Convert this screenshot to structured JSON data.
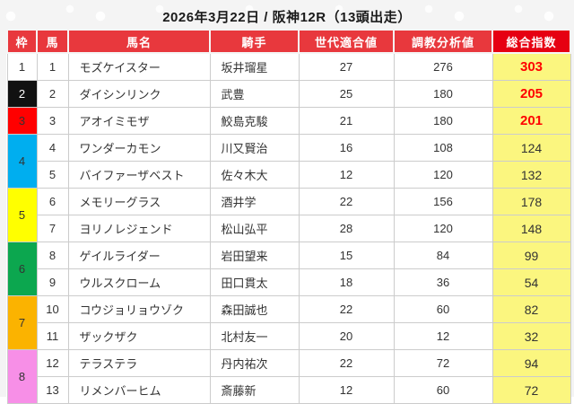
{
  "title": "2026年3月22日 / 阪神12R（13頭出走）",
  "colors": {
    "page_bg": "#f4f4f4",
    "header_bg": "#e8383d",
    "total_header_bg": "#e60012",
    "total_col_bg": "#fbf67f",
    "hot_value_color": "#ff0000"
  },
  "table": {
    "headers": [
      "枠",
      "馬",
      "馬名",
      "騎手",
      "世代適合値",
      "調教分析値",
      "総合指数"
    ],
    "frame_colors": {
      "1": {
        "bg": "#ffffff",
        "fg": "#333333"
      },
      "2": {
        "bg": "#111111",
        "fg": "#ffffff"
      },
      "3": {
        "bg": "#ff0000",
        "fg": "#333333"
      },
      "4": {
        "bg": "#00aeef",
        "fg": "#333333"
      },
      "5": {
        "bg": "#ffff00",
        "fg": "#333333"
      },
      "6": {
        "bg": "#0ca74f",
        "fg": "#333333"
      },
      "7": {
        "bg": "#fbb300",
        "fg": "#333333"
      },
      "8": {
        "bg": "#f78fe7",
        "fg": "#333333"
      }
    },
    "rows": [
      {
        "frame": 1,
        "num": 1,
        "name": "モズケイスター",
        "jockey": "坂井瑠星",
        "gen": 27,
        "train": 276,
        "total": 303,
        "hot": true
      },
      {
        "frame": 2,
        "num": 2,
        "name": "ダイシンリンク",
        "jockey": "武豊",
        "gen": 25,
        "train": 180,
        "total": 205,
        "hot": true
      },
      {
        "frame": 3,
        "num": 3,
        "name": "アオイミモザ",
        "jockey": "鮫島克駿",
        "gen": 21,
        "train": 180,
        "total": 201,
        "hot": true
      },
      {
        "frame": 4,
        "num": 4,
        "name": "ワンダーカモン",
        "jockey": "川又賢治",
        "gen": 16,
        "train": 108,
        "total": 124,
        "hot": false
      },
      {
        "frame": 4,
        "num": 5,
        "name": "バイファーザベスト",
        "jockey": "佐々木大",
        "gen": 12,
        "train": 120,
        "total": 132,
        "hot": false
      },
      {
        "frame": 5,
        "num": 6,
        "name": "メモリーグラス",
        "jockey": "酒井学",
        "gen": 22,
        "train": 156,
        "total": 178,
        "hot": false
      },
      {
        "frame": 5,
        "num": 7,
        "name": "ヨリノレジェンド",
        "jockey": "松山弘平",
        "gen": 28,
        "train": 120,
        "total": 148,
        "hot": false
      },
      {
        "frame": 6,
        "num": 8,
        "name": "ゲイルライダー",
        "jockey": "岩田望来",
        "gen": 15,
        "train": 84,
        "total": 99,
        "hot": false
      },
      {
        "frame": 6,
        "num": 9,
        "name": "ウルスクローム",
        "jockey": "田口貫太",
        "gen": 18,
        "train": 36,
        "total": 54,
        "hot": false
      },
      {
        "frame": 7,
        "num": 10,
        "name": "コウジョリョウゾク",
        "jockey": "森田誠也",
        "gen": 22,
        "train": 60,
        "total": 82,
        "hot": false
      },
      {
        "frame": 7,
        "num": 11,
        "name": "ザックザク",
        "jockey": "北村友一",
        "gen": 20,
        "train": 12,
        "total": 32,
        "hot": false
      },
      {
        "frame": 8,
        "num": 12,
        "name": "テラステラ",
        "jockey": "丹内祐次",
        "gen": 22,
        "train": 72,
        "total": 94,
        "hot": false
      },
      {
        "frame": 8,
        "num": 13,
        "name": "リメンバーヒム",
        "jockey": "斎藤新",
        "gen": 12,
        "train": 60,
        "total": 72,
        "hot": false
      }
    ]
  }
}
